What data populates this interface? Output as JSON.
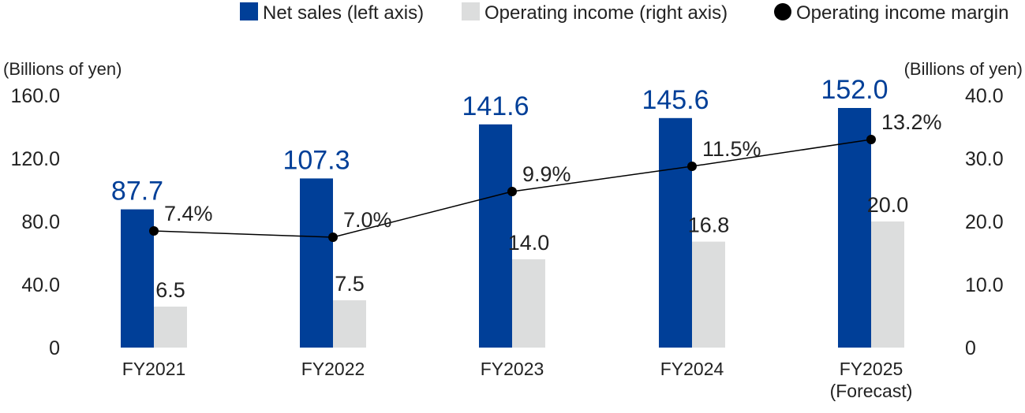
{
  "chart_data": {
    "type": "bar",
    "categories": [
      "FY2021",
      "FY2022",
      "FY2023",
      "FY2024",
      "FY2025"
    ],
    "category_sublabels": [
      "",
      "",
      "",
      "",
      "(Forecast)"
    ],
    "series": [
      {
        "name": "Net sales (left axis)",
        "type": "bar",
        "axis": "left",
        "color": "#003f98",
        "values": [
          87.7,
          107.3,
          141.6,
          145.6,
          152.0
        ],
        "labels": [
          "87.7",
          "107.3",
          "141.6",
          "145.6",
          "152.0"
        ]
      },
      {
        "name": "Operating income (right axis)",
        "type": "bar",
        "axis": "right",
        "color": "#dcdddd",
        "values": [
          6.5,
          7.5,
          14.0,
          16.8,
          20.0
        ],
        "labels": [
          "6.5",
          "7.5",
          "14.0",
          "16.8",
          "20.0"
        ]
      },
      {
        "name": "Operating income margin",
        "type": "line",
        "color": "#000000",
        "values": [
          7.4,
          7.0,
          9.9,
          11.5,
          13.2
        ],
        "labels": [
          "7.4%",
          "7.0%",
          "9.9%",
          "11.5%",
          "13.2%"
        ]
      }
    ],
    "left_axis": {
      "label": "(Billions of yen)",
      "ylim": [
        0,
        160
      ],
      "ticks": [
        "0",
        "40.0",
        "80.0",
        "120.0",
        "160.0"
      ]
    },
    "right_axis": {
      "label": "(Billions of yen)",
      "ylim": [
        0,
        40
      ],
      "ticks": [
        "0",
        "10.0",
        "20.0",
        "30.0",
        "40.0"
      ]
    },
    "margin_scale": [
      0,
      16
    ],
    "grid": false,
    "legend_position": "top-right"
  }
}
